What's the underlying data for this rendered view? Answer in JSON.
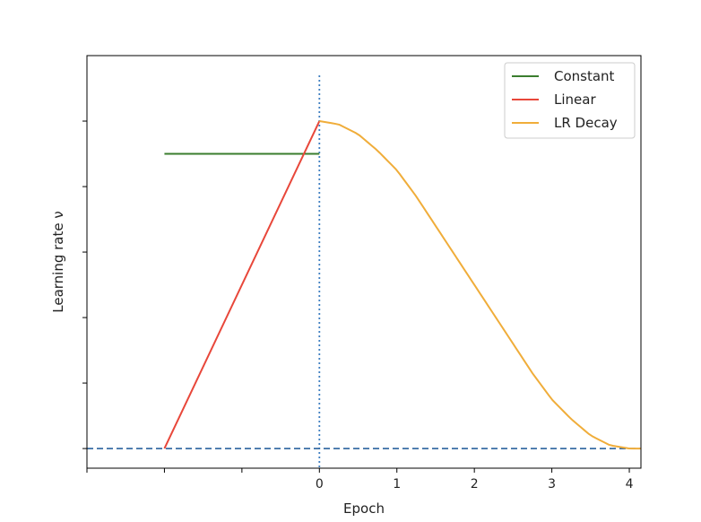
{
  "chart_data": {
    "type": "line",
    "title": "",
    "xlabel": "Epoch",
    "ylabel": "Learning rate ν",
    "xlim": [
      -3.0,
      4.15
    ],
    "ylim": [
      -0.06,
      1.2
    ],
    "x_ticks": [
      -3,
      -2,
      -1,
      0,
      1,
      2,
      3,
      4
    ],
    "x_tick_labels": [
      "",
      "",
      "",
      "0",
      "1",
      "2",
      "3",
      "4"
    ],
    "y_ticks": [
      0,
      0.2,
      0.4,
      0.6,
      0.8,
      1.0
    ],
    "y_tick_labels": [
      "",
      "",
      "",
      "",
      "",
      ""
    ],
    "grid": false,
    "legend": "top-right",
    "series": [
      {
        "name": "Constant",
        "color": "#3a7d2e",
        "style": "solid",
        "x": [
          -2.0,
          0.0
        ],
        "y": [
          0.9,
          0.9
        ]
      },
      {
        "name": "Linear",
        "color": "#e8473a",
        "style": "solid",
        "x": [
          -2.0,
          0.0
        ],
        "y": [
          0.0,
          1.0
        ]
      },
      {
        "name": "LR Decay",
        "color": "#f0ad3a",
        "style": "solid",
        "x": [
          0.0,
          0.25,
          0.5,
          0.75,
          1.0,
          1.25,
          1.5,
          1.75,
          2.0,
          2.25,
          2.5,
          2.75,
          3.0,
          3.25,
          3.5,
          3.75,
          4.0,
          4.15
        ],
        "y": [
          1.0,
          0.99,
          0.96,
          0.91,
          0.85,
          0.77,
          0.68,
          0.59,
          0.5,
          0.41,
          0.32,
          0.23,
          0.15,
          0.09,
          0.04,
          0.01,
          0.0,
          0.0
        ]
      }
    ],
    "reference_lines": [
      {
        "orientation": "vertical",
        "value": 0,
        "color": "#3f7fc1",
        "style": "dotted"
      },
      {
        "orientation": "horizontal",
        "value": 0,
        "color": "#3a6ea5",
        "style": "dashed"
      }
    ]
  }
}
